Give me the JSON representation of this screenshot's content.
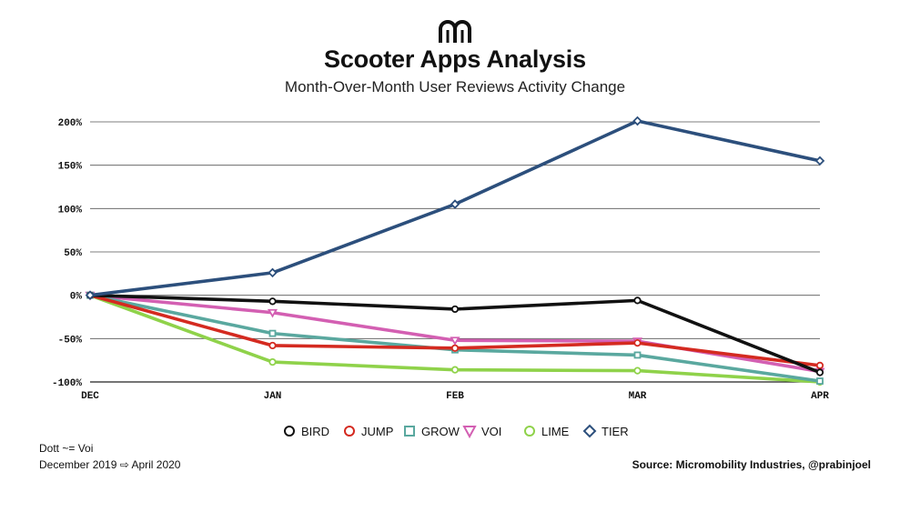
{
  "header": {
    "logo_icon": "micromobility-logo-icon",
    "title": "Scooter Apps Analysis",
    "subtitle": "Month-Over-Month User Reviews Activity Change"
  },
  "chart_data": {
    "type": "line",
    "title": "Scooter Apps Analysis",
    "subtitle": "Month-Over-Month User Reviews Activity Change",
    "categories": [
      "DEC",
      "JAN",
      "FEB",
      "MAR",
      "APR"
    ],
    "y_ticks": [
      -100,
      -50,
      0,
      50,
      100,
      150,
      200
    ],
    "y_tick_labels": [
      "-100%",
      "-50%",
      "0%",
      "50%",
      "100%",
      "150%",
      "200%"
    ],
    "ylim": [
      -100,
      200
    ],
    "grid": true,
    "legend_position": "bottom",
    "series": [
      {
        "name": "BIRD",
        "color": "#111111",
        "marker": "circle",
        "values": [
          0,
          -7,
          -16,
          -6,
          -89
        ]
      },
      {
        "name": "JUMP",
        "color": "#d42a20",
        "marker": "circle",
        "values": [
          0,
          -58,
          -61,
          -55,
          -81
        ]
      },
      {
        "name": "GROW",
        "color": "#5aa89f",
        "marker": "square",
        "values": [
          0,
          -44,
          -63,
          -69,
          -99
        ]
      },
      {
        "name": "VOI",
        "color": "#d35fb2",
        "marker": "triangle-down",
        "values": [
          0,
          -20,
          -52,
          -53,
          -88
        ]
      },
      {
        "name": "LIME",
        "color": "#8fd24a",
        "marker": "circle",
        "values": [
          0,
          -77,
          -86,
          -87,
          -100
        ]
      },
      {
        "name": "TIER",
        "color": "#2c4f7c",
        "marker": "diamond",
        "values": [
          0,
          26,
          105,
          201,
          155
        ]
      }
    ]
  },
  "footer": {
    "note1": "Dott ~= Voi",
    "note2": "December 2019 ⇨ April 2020",
    "source": "Source: Micromobility Industries, @prabinjoel"
  }
}
